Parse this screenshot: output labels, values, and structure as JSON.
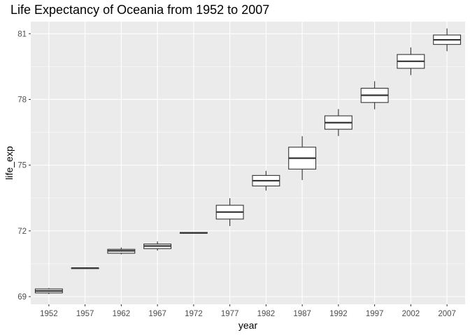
{
  "chart_data": {
    "type": "box",
    "title": "Life Expectancy of Oceania from 1952 to 2007",
    "xlabel": "year",
    "ylabel": "life_exp",
    "categories": [
      "1952",
      "1957",
      "1962",
      "1967",
      "1972",
      "1977",
      "1982",
      "1987",
      "1992",
      "1997",
      "2002",
      "2007"
    ],
    "yticks": [
      69,
      72,
      75,
      78,
      81
    ],
    "ylim": [
      68.65,
      81.55
    ],
    "grid": true,
    "boxes": [
      {
        "x": "1952",
        "min": 69.12,
        "q1": 69.17,
        "median": 69.26,
        "q3": 69.35,
        "max": 69.39
      },
      {
        "x": "1957",
        "min": 70.26,
        "q1": 70.28,
        "median": 70.3,
        "q3": 70.31,
        "max": 70.33
      },
      {
        "x": "1962",
        "min": 70.93,
        "q1": 70.98,
        "median": 71.09,
        "q3": 71.16,
        "max": 71.24
      },
      {
        "x": "1967",
        "min": 71.1,
        "q1": 71.19,
        "median": 71.31,
        "q3": 71.4,
        "max": 71.52
      },
      {
        "x": "1972",
        "min": 71.89,
        "q1": 71.89,
        "median": 71.91,
        "q3": 71.93,
        "max": 71.93
      },
      {
        "x": "1977",
        "min": 72.22,
        "q1": 72.54,
        "median": 72.86,
        "q3": 73.17,
        "max": 73.49
      },
      {
        "x": "1982",
        "min": 73.84,
        "q1": 74.05,
        "median": 74.29,
        "q3": 74.53,
        "max": 74.74
      },
      {
        "x": "1987",
        "min": 74.32,
        "q1": 74.82,
        "median": 75.32,
        "q3": 75.82,
        "max": 76.32
      },
      {
        "x": "1992",
        "min": 76.33,
        "q1": 76.64,
        "median": 76.94,
        "q3": 77.25,
        "max": 77.56
      },
      {
        "x": "1997",
        "min": 77.55,
        "q1": 77.86,
        "median": 78.19,
        "q3": 78.51,
        "max": 78.83
      },
      {
        "x": "2002",
        "min": 79.11,
        "q1": 79.42,
        "median": 79.74,
        "q3": 80.05,
        "max": 80.37
      },
      {
        "x": "2007",
        "min": 80.2,
        "q1": 80.51,
        "median": 80.72,
        "q3": 80.94,
        "max": 81.24
      }
    ],
    "colors": {
      "panel": "#ebebeb",
      "grid_major": "#ffffff",
      "box_fill": "#ffffff",
      "box_stroke": "#333333",
      "tick": "#333333"
    }
  }
}
